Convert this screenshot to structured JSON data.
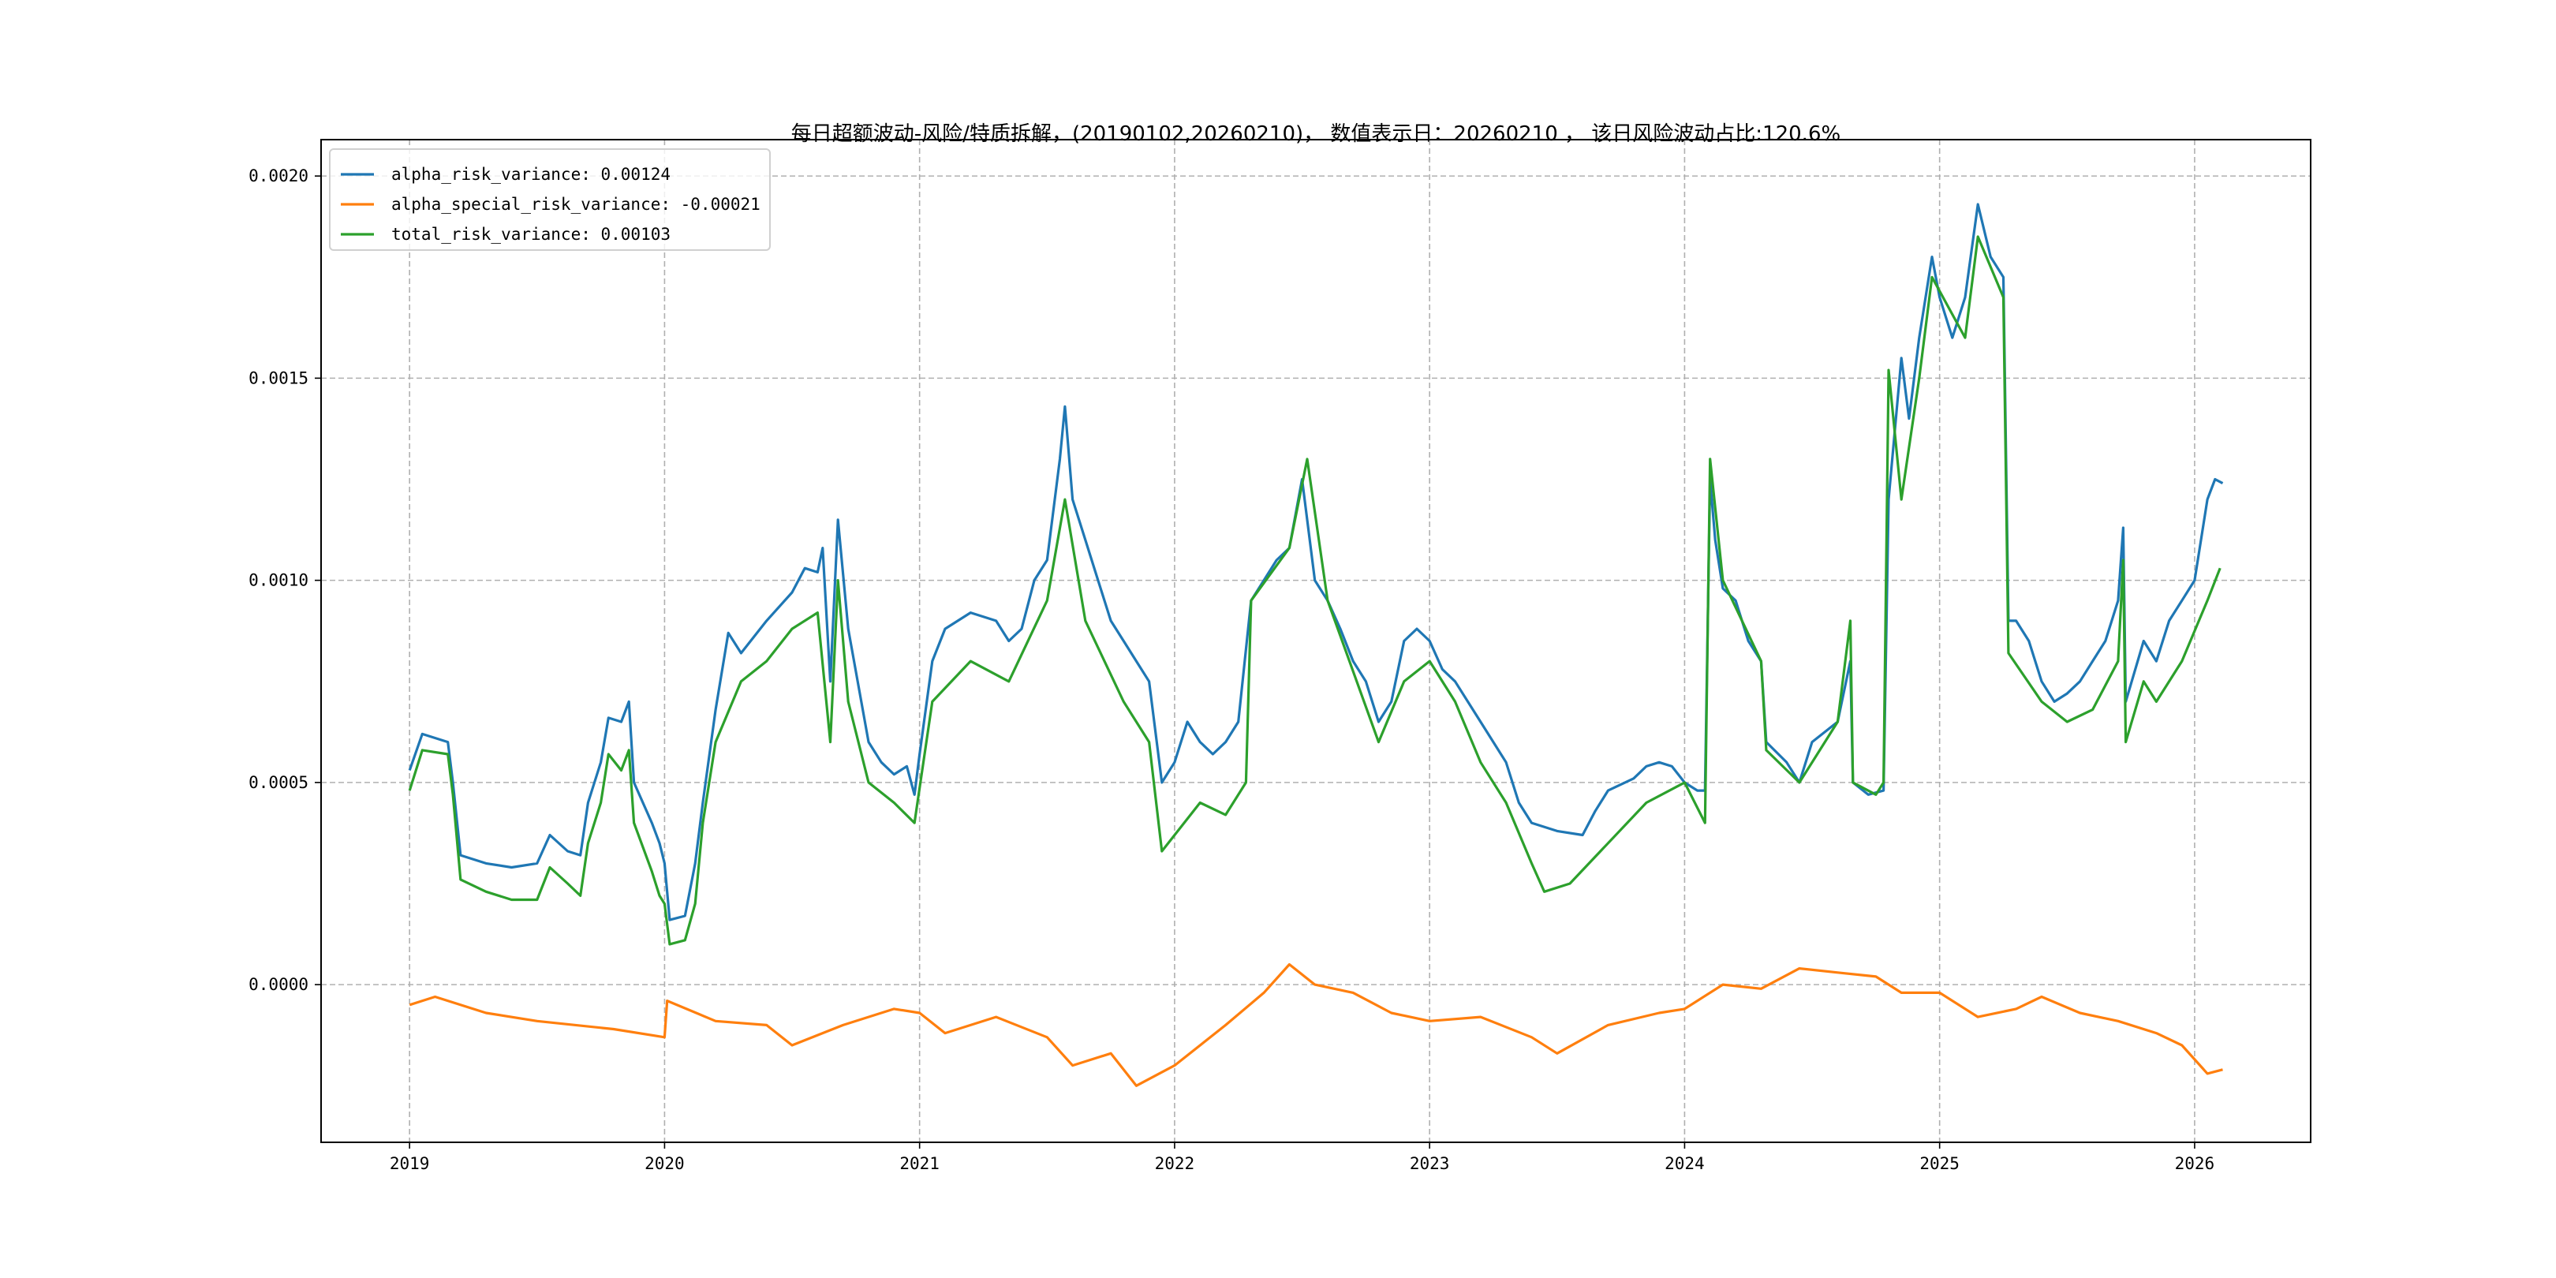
{
  "chart_data": {
    "type": "line",
    "title": "每日超额波动-风险/特质拆解，(20190102,20260210)， 数值表示日：20260210 ， 该日风险波动占比:120.6%",
    "xlabel": "",
    "ylabel": "",
    "xlim": [
      2018.653,
      2026.455
    ],
    "ylim": [
      -0.00039,
      0.00209
    ],
    "grid": true,
    "legend_position": "top-left",
    "x_ticks": [
      2019,
      2020,
      2021,
      2022,
      2023,
      2024,
      2025,
      2026
    ],
    "x_tick_labels": [
      "2019",
      "2020",
      "2021",
      "2022",
      "2023",
      "2024",
      "2025",
      "2026"
    ],
    "y_ticks": [
      0.0,
      0.0005,
      0.001,
      0.0015,
      0.002
    ],
    "y_tick_labels": [
      "0.0000",
      "0.0005",
      "0.0010",
      "0.0015",
      "0.0020"
    ],
    "series": [
      {
        "name": "alpha_risk_variance: 0.00124",
        "color": "#1f77b4",
        "points": [
          [
            2019.0,
            0.00053
          ],
          [
            2019.05,
            0.00062
          ],
          [
            2019.15,
            0.0006
          ],
          [
            2019.17,
            0.0005
          ],
          [
            2019.2,
            0.00032
          ],
          [
            2019.3,
            0.0003
          ],
          [
            2019.4,
            0.00029
          ],
          [
            2019.5,
            0.0003
          ],
          [
            2019.55,
            0.00037
          ],
          [
            2019.62,
            0.00033
          ],
          [
            2019.67,
            0.00032
          ],
          [
            2019.7,
            0.00045
          ],
          [
            2019.75,
            0.00055
          ],
          [
            2019.78,
            0.00066
          ],
          [
            2019.83,
            0.00065
          ],
          [
            2019.86,
            0.0007
          ],
          [
            2019.88,
            0.0005
          ],
          [
            2019.95,
            0.0004
          ],
          [
            2019.98,
            0.00035
          ],
          [
            2020.0,
            0.0003
          ],
          [
            2020.02,
            0.00016
          ],
          [
            2020.08,
            0.00017
          ],
          [
            2020.12,
            0.0003
          ],
          [
            2020.15,
            0.00045
          ],
          [
            2020.2,
            0.00068
          ],
          [
            2020.25,
            0.00087
          ],
          [
            2020.3,
            0.00082
          ],
          [
            2020.4,
            0.0009
          ],
          [
            2020.5,
            0.00097
          ],
          [
            2020.55,
            0.00103
          ],
          [
            2020.6,
            0.00102
          ],
          [
            2020.62,
            0.00108
          ],
          [
            2020.65,
            0.00075
          ],
          [
            2020.68,
            0.00115
          ],
          [
            2020.72,
            0.00088
          ],
          [
            2020.8,
            0.0006
          ],
          [
            2020.85,
            0.00055
          ],
          [
            2020.9,
            0.00052
          ],
          [
            2020.95,
            0.00054
          ],
          [
            2020.98,
            0.00047
          ],
          [
            2021.0,
            0.00057
          ],
          [
            2021.05,
            0.0008
          ],
          [
            2021.1,
            0.00088
          ],
          [
            2021.2,
            0.00092
          ],
          [
            2021.3,
            0.0009
          ],
          [
            2021.35,
            0.00085
          ],
          [
            2021.4,
            0.00088
          ],
          [
            2021.45,
            0.001
          ],
          [
            2021.5,
            0.00105
          ],
          [
            2021.55,
            0.0013
          ],
          [
            2021.57,
            0.00143
          ],
          [
            2021.6,
            0.0012
          ],
          [
            2021.65,
            0.0011
          ],
          [
            2021.7,
            0.001
          ],
          [
            2021.75,
            0.0009
          ],
          [
            2021.8,
            0.00085
          ],
          [
            2021.85,
            0.0008
          ],
          [
            2021.9,
            0.00075
          ],
          [
            2021.95,
            0.0005
          ],
          [
            2022.0,
            0.00055
          ],
          [
            2022.05,
            0.00065
          ],
          [
            2022.1,
            0.0006
          ],
          [
            2022.15,
            0.00057
          ],
          [
            2022.2,
            0.0006
          ],
          [
            2022.25,
            0.00065
          ],
          [
            2022.3,
            0.00095
          ],
          [
            2022.35,
            0.001
          ],
          [
            2022.4,
            0.00105
          ],
          [
            2022.45,
            0.00108
          ],
          [
            2022.5,
            0.00125
          ],
          [
            2022.55,
            0.001
          ],
          [
            2022.6,
            0.00095
          ],
          [
            2022.65,
            0.00088
          ],
          [
            2022.7,
            0.0008
          ],
          [
            2022.75,
            0.00075
          ],
          [
            2022.8,
            0.00065
          ],
          [
            2022.85,
            0.0007
          ],
          [
            2022.9,
            0.00085
          ],
          [
            2022.95,
            0.00088
          ],
          [
            2023.0,
            0.00085
          ],
          [
            2023.05,
            0.00078
          ],
          [
            2023.1,
            0.00075
          ],
          [
            2023.2,
            0.00065
          ],
          [
            2023.3,
            0.00055
          ],
          [
            2023.35,
            0.00045
          ],
          [
            2023.4,
            0.0004
          ],
          [
            2023.5,
            0.00038
          ],
          [
            2023.6,
            0.00037
          ],
          [
            2023.65,
            0.00043
          ],
          [
            2023.7,
            0.00048
          ],
          [
            2023.8,
            0.00051
          ],
          [
            2023.85,
            0.00054
          ],
          [
            2023.9,
            0.00055
          ],
          [
            2023.95,
            0.00054
          ],
          [
            2024.0,
            0.0005
          ],
          [
            2024.05,
            0.00048
          ],
          [
            2024.08,
            0.00048
          ],
          [
            2024.1,
            0.00125
          ],
          [
            2024.12,
            0.0011
          ],
          [
            2024.15,
            0.00098
          ],
          [
            2024.2,
            0.00095
          ],
          [
            2024.25,
            0.00085
          ],
          [
            2024.3,
            0.0008
          ],
          [
            2024.32,
            0.0006
          ],
          [
            2024.4,
            0.00055
          ],
          [
            2024.45,
            0.0005
          ],
          [
            2024.5,
            0.0006
          ],
          [
            2024.6,
            0.00065
          ],
          [
            2024.65,
            0.0008
          ],
          [
            2024.66,
            0.0005
          ],
          [
            2024.72,
            0.00047
          ],
          [
            2024.78,
            0.00048
          ],
          [
            2024.8,
            0.0012
          ],
          [
            2024.85,
            0.00155
          ],
          [
            2024.88,
            0.0014
          ],
          [
            2024.92,
            0.0016
          ],
          [
            2024.97,
            0.0018
          ],
          [
            2025.0,
            0.0017
          ],
          [
            2025.05,
            0.0016
          ],
          [
            2025.1,
            0.0017
          ],
          [
            2025.15,
            0.00193
          ],
          [
            2025.2,
            0.0018
          ],
          [
            2025.25,
            0.00175
          ],
          [
            2025.27,
            0.0009
          ],
          [
            2025.3,
            0.0009
          ],
          [
            2025.35,
            0.00085
          ],
          [
            2025.4,
            0.00075
          ],
          [
            2025.45,
            0.0007
          ],
          [
            2025.5,
            0.00072
          ],
          [
            2025.55,
            0.00075
          ],
          [
            2025.6,
            0.0008
          ],
          [
            2025.65,
            0.00085
          ],
          [
            2025.7,
            0.00095
          ],
          [
            2025.72,
            0.00113
          ],
          [
            2025.73,
            0.0007
          ],
          [
            2025.8,
            0.00085
          ],
          [
            2025.85,
            0.0008
          ],
          [
            2025.9,
            0.0009
          ],
          [
            2025.95,
            0.00095
          ],
          [
            2026.0,
            0.001
          ],
          [
            2026.05,
            0.0012
          ],
          [
            2026.08,
            0.00125
          ],
          [
            2026.11,
            0.00124
          ]
        ]
      },
      {
        "name": "alpha_special_risk_variance: -0.00021",
        "color": "#ff7f0e",
        "points": [
          [
            2019.0,
            -5e-05
          ],
          [
            2019.1,
            -3e-05
          ],
          [
            2019.3,
            -7e-05
          ],
          [
            2019.5,
            -9e-05
          ],
          [
            2019.8,
            -0.00011
          ],
          [
            2020.0,
            -0.00013
          ],
          [
            2020.01,
            -4e-05
          ],
          [
            2020.2,
            -9e-05
          ],
          [
            2020.4,
            -0.0001
          ],
          [
            2020.5,
            -0.00015
          ],
          [
            2020.7,
            -0.0001
          ],
          [
            2020.9,
            -6e-05
          ],
          [
            2021.0,
            -7e-05
          ],
          [
            2021.1,
            -0.00012
          ],
          [
            2021.3,
            -8e-05
          ],
          [
            2021.5,
            -0.00013
          ],
          [
            2021.6,
            -0.0002
          ],
          [
            2021.75,
            -0.00017
          ],
          [
            2021.85,
            -0.00025
          ],
          [
            2022.0,
            -0.0002
          ],
          [
            2022.2,
            -0.0001
          ],
          [
            2022.35,
            -2e-05
          ],
          [
            2022.45,
            5e-05
          ],
          [
            2022.55,
            0.0
          ],
          [
            2022.7,
            -2e-05
          ],
          [
            2022.85,
            -7e-05
          ],
          [
            2023.0,
            -9e-05
          ],
          [
            2023.2,
            -8e-05
          ],
          [
            2023.4,
            -0.00013
          ],
          [
            2023.5,
            -0.00017
          ],
          [
            2023.7,
            -0.0001
          ],
          [
            2023.9,
            -7e-05
          ],
          [
            2024.0,
            -6e-05
          ],
          [
            2024.15,
            0.0
          ],
          [
            2024.3,
            -1e-05
          ],
          [
            2024.45,
            4e-05
          ],
          [
            2024.6,
            3e-05
          ],
          [
            2024.75,
            2e-05
          ],
          [
            2024.85,
            -2e-05
          ],
          [
            2025.0,
            -2e-05
          ],
          [
            2025.15,
            -8e-05
          ],
          [
            2025.3,
            -6e-05
          ],
          [
            2025.4,
            -3e-05
          ],
          [
            2025.55,
            -7e-05
          ],
          [
            2025.7,
            -9e-05
          ],
          [
            2025.85,
            -0.00012
          ],
          [
            2025.95,
            -0.00015
          ],
          [
            2026.05,
            -0.00022
          ],
          [
            2026.11,
            -0.00021
          ]
        ]
      },
      {
        "name": "total_risk_variance: 0.00103",
        "color": "#2ca02c",
        "points": [
          [
            2019.0,
            0.00048
          ],
          [
            2019.05,
            0.00058
          ],
          [
            2019.15,
            0.00057
          ],
          [
            2019.17,
            0.00047
          ],
          [
            2019.2,
            0.00026
          ],
          [
            2019.3,
            0.00023
          ],
          [
            2019.4,
            0.00021
          ],
          [
            2019.5,
            0.00021
          ],
          [
            2019.55,
            0.00029
          ],
          [
            2019.62,
            0.00025
          ],
          [
            2019.67,
            0.00022
          ],
          [
            2019.7,
            0.00035
          ],
          [
            2019.75,
            0.00045
          ],
          [
            2019.78,
            0.00057
          ],
          [
            2019.83,
            0.00053
          ],
          [
            2019.86,
            0.00058
          ],
          [
            2019.88,
            0.0004
          ],
          [
            2019.95,
            0.00028
          ],
          [
            2019.98,
            0.00022
          ],
          [
            2020.0,
            0.0002
          ],
          [
            2020.02,
            0.0001
          ],
          [
            2020.08,
            0.00011
          ],
          [
            2020.12,
            0.0002
          ],
          [
            2020.15,
            0.0004
          ],
          [
            2020.2,
            0.0006
          ],
          [
            2020.3,
            0.00075
          ],
          [
            2020.4,
            0.0008
          ],
          [
            2020.5,
            0.00088
          ],
          [
            2020.6,
            0.00092
          ],
          [
            2020.65,
            0.0006
          ],
          [
            2020.68,
            0.001
          ],
          [
            2020.72,
            0.0007
          ],
          [
            2020.8,
            0.0005
          ],
          [
            2020.9,
            0.00045
          ],
          [
            2020.98,
            0.0004
          ],
          [
            2021.05,
            0.0007
          ],
          [
            2021.2,
            0.0008
          ],
          [
            2021.35,
            0.00075
          ],
          [
            2021.5,
            0.00095
          ],
          [
            2021.57,
            0.0012
          ],
          [
            2021.65,
            0.0009
          ],
          [
            2021.8,
            0.0007
          ],
          [
            2021.9,
            0.0006
          ],
          [
            2021.95,
            0.00033
          ],
          [
            2022.1,
            0.00045
          ],
          [
            2022.2,
            0.00042
          ],
          [
            2022.28,
            0.0005
          ],
          [
            2022.3,
            0.00095
          ],
          [
            2022.45,
            0.00108
          ],
          [
            2022.52,
            0.0013
          ],
          [
            2022.6,
            0.00095
          ],
          [
            2022.8,
            0.0006
          ],
          [
            2022.9,
            0.00075
          ],
          [
            2023.0,
            0.0008
          ],
          [
            2023.1,
            0.0007
          ],
          [
            2023.2,
            0.00055
          ],
          [
            2023.3,
            0.00045
          ],
          [
            2023.4,
            0.0003
          ],
          [
            2023.45,
            0.00023
          ],
          [
            2023.55,
            0.00025
          ],
          [
            2023.7,
            0.00035
          ],
          [
            2023.85,
            0.00045
          ],
          [
            2024.0,
            0.0005
          ],
          [
            2024.08,
            0.0004
          ],
          [
            2024.1,
            0.0013
          ],
          [
            2024.15,
            0.001
          ],
          [
            2024.3,
            0.0008
          ],
          [
            2024.32,
            0.00058
          ],
          [
            2024.45,
            0.0005
          ],
          [
            2024.6,
            0.00065
          ],
          [
            2024.65,
            0.0009
          ],
          [
            2024.66,
            0.0005
          ],
          [
            2024.75,
            0.00047
          ],
          [
            2024.78,
            0.0005
          ],
          [
            2024.8,
            0.00152
          ],
          [
            2024.85,
            0.0012
          ],
          [
            2024.92,
            0.0015
          ],
          [
            2024.97,
            0.00175
          ],
          [
            2025.1,
            0.0016
          ],
          [
            2025.15,
            0.00185
          ],
          [
            2025.25,
            0.0017
          ],
          [
            2025.27,
            0.00082
          ],
          [
            2025.4,
            0.0007
          ],
          [
            2025.5,
            0.00065
          ],
          [
            2025.6,
            0.00068
          ],
          [
            2025.7,
            0.0008
          ],
          [
            2025.72,
            0.00105
          ],
          [
            2025.73,
            0.0006
          ],
          [
            2025.8,
            0.00075
          ],
          [
            2025.85,
            0.0007
          ],
          [
            2025.95,
            0.0008
          ],
          [
            2026.05,
            0.00095
          ],
          [
            2026.1,
            0.00103
          ]
        ]
      }
    ]
  }
}
